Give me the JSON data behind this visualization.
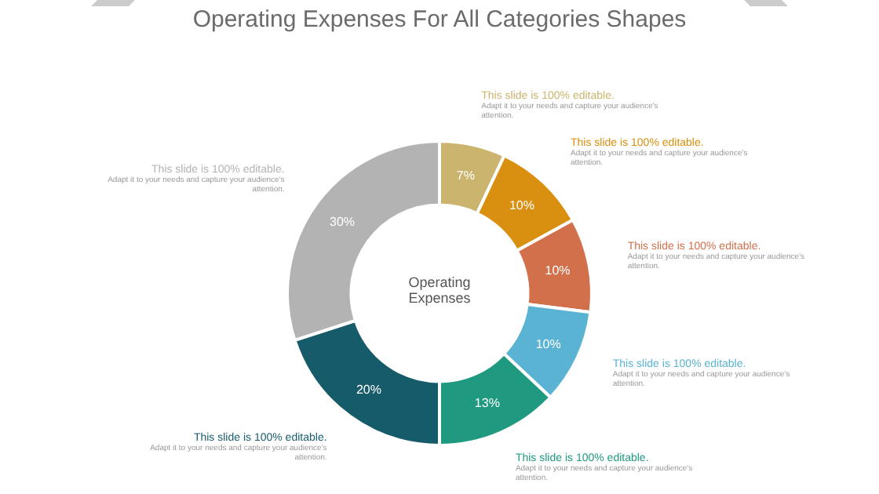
{
  "chart_data": {
    "type": "donut",
    "title": "Operating Expenses For All Categories Shapes",
    "categories": [
      null,
      null,
      null,
      null,
      null,
      null,
      null
    ],
    "values": [
      7,
      10,
      10,
      10,
      13,
      20,
      30
    ],
    "colors": [
      "#cbb46e",
      "#d98f0f",
      "#d2704c",
      "#5ab3d3",
      "#1f9a80",
      "#165b6a",
      "#b3b3b3"
    ],
    "value_labels": [
      "7%",
      "10%",
      "10%",
      "10%",
      "13%",
      "20%",
      "30%"
    ],
    "annotations": [
      "Operating Expenses",
      "This slide is 100% editable.",
      "Adapt it to your needs and capture your audience's attention.",
      "This slide is 100% editable.",
      "Adapt it to your needs and capture your audience's attention.",
      "This slide is 100% editable.",
      "Adapt it to your needs and capture your audience's attention.",
      "This slide is 100% editable.",
      "Adapt it to your needs and capture your audience's attention.",
      "This slide is 100% editable.",
      "Adapt it to your needs and capture your audience's attention.",
      "This slide is 100% editable.",
      "Adapt it to your needs and capture your audience's attention.",
      "This slide is 100% editable.",
      "Adapt it to your needs and capture your audience's attention."
    ]
  }
}
